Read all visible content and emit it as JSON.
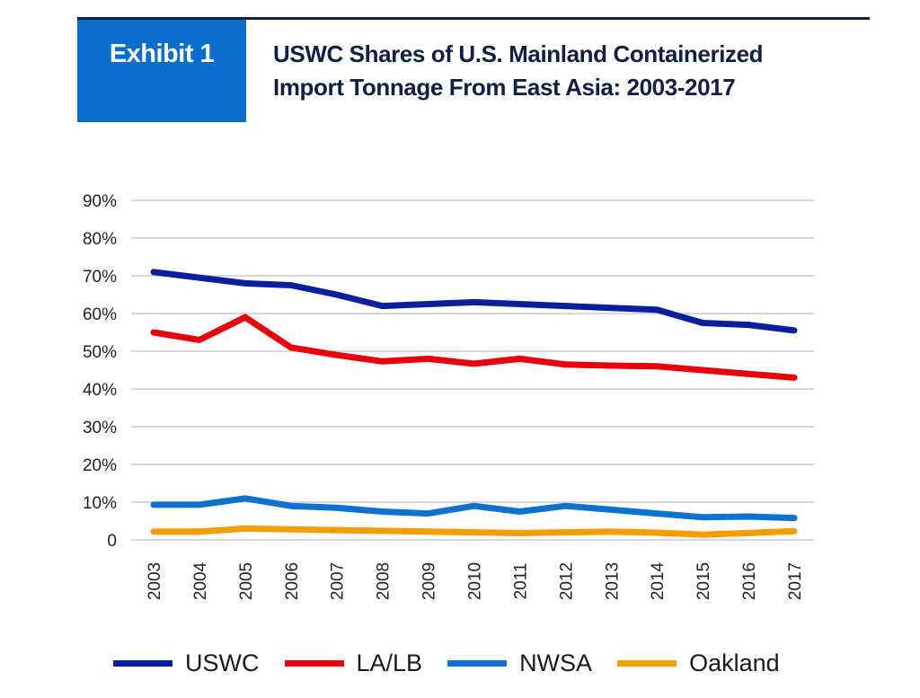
{
  "header": {
    "exhibit_label": "Exhibit 1",
    "title_line1": "USWC Shares of U.S. Mainland Containerized",
    "title_line2": "Import Tonnage From East Asia: 2003-2017",
    "exhibit_color": "#0a6fcb",
    "title_color": "#0f1f45"
  },
  "chart_data": {
    "type": "line",
    "title": "USWC Shares of U.S. Mainland Containerized Import Tonnage From East Asia: 2003-2017",
    "xlabel": "",
    "ylabel": "",
    "x": [
      "2003",
      "2004",
      "2005",
      "2006",
      "2007",
      "2008",
      "2009",
      "2010",
      "2011",
      "2012",
      "2013",
      "2014",
      "2015",
      "2016",
      "2017"
    ],
    "ylim": [
      0,
      90
    ],
    "yticks": [
      0,
      10,
      20,
      30,
      40,
      50,
      60,
      70,
      80,
      90
    ],
    "ytick_labels": [
      "0",
      "10%",
      "20%",
      "30%",
      "40%",
      "50%",
      "60%",
      "70%",
      "80%",
      "90%"
    ],
    "grid": true,
    "legend_position": "bottom",
    "series": [
      {
        "name": "USWC",
        "color": "#0a1f9e",
        "values": [
          71,
          69.5,
          68,
          67.5,
          65,
          62,
          62.5,
          63,
          62.5,
          62,
          61.5,
          61,
          57.5,
          57,
          55.5
        ]
      },
      {
        "name": "LA/LB",
        "color": "#e8000b",
        "values": [
          55,
          53,
          59,
          51,
          49,
          47.3,
          48,
          46.7,
          48,
          46.5,
          46.2,
          46,
          45,
          44,
          43
        ]
      },
      {
        "name": "NWSA",
        "color": "#0b72cf",
        "values": [
          9.3,
          9.3,
          11,
          9,
          8.5,
          7.5,
          7,
          9,
          7.5,
          9,
          8,
          7,
          6,
          6.2,
          5.8
        ]
      },
      {
        "name": "Oakland",
        "color": "#f59c00",
        "values": [
          2.2,
          2.2,
          3,
          2.8,
          2.6,
          2.4,
          2.2,
          2,
          1.8,
          2,
          2.2,
          1.9,
          1.4,
          1.8,
          2.3
        ]
      }
    ]
  }
}
